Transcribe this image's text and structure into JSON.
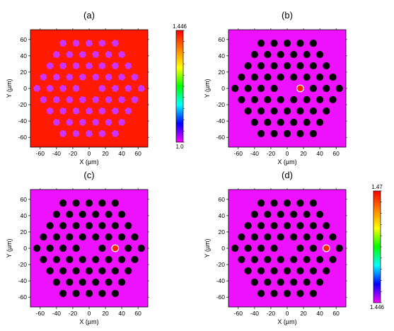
{
  "chart_data": [
    {
      "type": "heatmap",
      "panel_label": "(a)",
      "xlabel": "X (µm)",
      "ylabel": "Y (µm)",
      "xlim": [
        -72,
        72
      ],
      "ylim": [
        -72,
        72
      ],
      "xticks": [
        "-60",
        "-40",
        "-20",
        "0",
        "20",
        "40",
        "60"
      ],
      "yticks": [
        "60",
        "40",
        "20",
        "0",
        "-20",
        "-40",
        "-60"
      ],
      "background_color": "#ff1a00",
      "hole_color": "#cc33ff",
      "hole_style": "jagged",
      "core_center": null,
      "colorbar": {
        "max_label": "1.446",
        "min_label": "1.0"
      }
    },
    {
      "type": "heatmap",
      "panel_label": "(b)",
      "xlabel": "X (µm)",
      "ylabel": "Y (µm)",
      "xlim": [
        -72,
        72
      ],
      "ylim": [
        -72,
        72
      ],
      "xticks": [
        "-60",
        "-40",
        "-20",
        "0",
        "20",
        "40",
        "60"
      ],
      "yticks": [
        "60",
        "40",
        "20",
        "0",
        "-20",
        "-40",
        "-60"
      ],
      "background_color": "#ee11ff",
      "hole_color": "#000000",
      "hole_style": "round",
      "core_center": [
        16,
        0
      ]
    },
    {
      "type": "heatmap",
      "panel_label": "(c)",
      "xlabel": "X (µm)",
      "ylabel": "Y (µm)",
      "xlim": [
        -72,
        72
      ],
      "ylim": [
        -72,
        72
      ],
      "xticks": [
        "-60",
        "-40",
        "-20",
        "0",
        "20",
        "40",
        "60"
      ],
      "yticks": [
        "60",
        "40",
        "20",
        "0",
        "-20",
        "-40",
        "-60"
      ],
      "background_color": "#ee11ff",
      "hole_color": "#000000",
      "hole_style": "round",
      "core_center": [
        32,
        0
      ]
    },
    {
      "type": "heatmap",
      "panel_label": "(d)",
      "xlabel": "X (µm)",
      "ylabel": "Y (µm)",
      "xlim": [
        -72,
        72
      ],
      "ylim": [
        -72,
        72
      ],
      "xticks": [
        "-60",
        "-40",
        "-20",
        "0",
        "20",
        "40",
        "60"
      ],
      "yticks": [
        "60",
        "40",
        "20",
        "0",
        "-20",
        "-40",
        "-60"
      ],
      "background_color": "#ee11ff",
      "hole_color": "#000000",
      "hole_style": "round",
      "core_center": [
        48,
        0
      ],
      "colorbar": {
        "max_label": "1.47",
        "min_label": "1.446"
      }
    }
  ],
  "lattice": {
    "pitch": 16,
    "rings": 4,
    "hole_diameter": 8.8
  },
  "core_color": "#ff2a00",
  "colorbar_gradient": [
    "#ff0000",
    "#ff8000",
    "#ffff00",
    "#00ff00",
    "#00ffff",
    "#0000ff",
    "#ff00ff"
  ]
}
